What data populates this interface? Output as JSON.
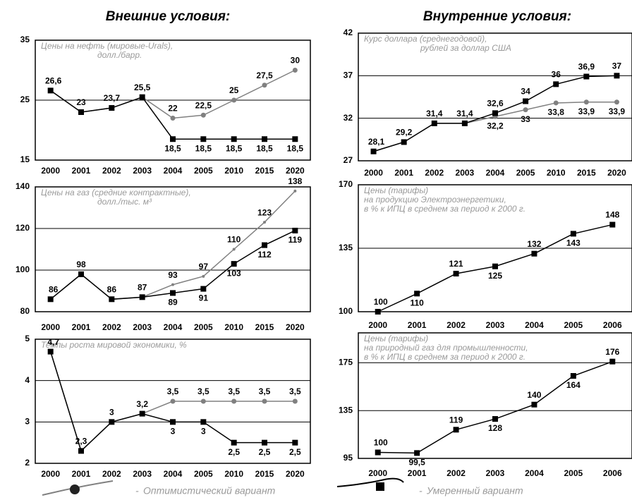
{
  "headers": [
    "Внешние условия:",
    "Внутренние условия:"
  ],
  "chart_data": [
    {
      "type": "line",
      "title": [
        "Цены на нефть (мировые-Urals),",
        "долл./барр."
      ],
      "categories": [
        "2000",
        "2001",
        "2002",
        "2003",
        "2004",
        "2005",
        "2010",
        "2015",
        "2020"
      ],
      "ylim": [
        15,
        35
      ],
      "yticks": [
        15,
        25,
        35
      ],
      "grid": true,
      "series": [
        {
          "name": "Оптимистический вариант",
          "color": "#808080",
          "marker": "circle",
          "values": [
            26.6,
            23,
            23.7,
            25.5,
            22,
            22.5,
            25,
            27.5,
            30
          ],
          "value_labels": [
            "26,6",
            "23",
            "23,7",
            "25,5",
            "22",
            "22,5",
            "25",
            "27,5",
            "30"
          ]
        },
        {
          "name": "Умеренный вариант",
          "color": "#000000",
          "marker": "square",
          "values": [
            26.6,
            23,
            23.7,
            25.5,
            18.5,
            18.5,
            18.5,
            18.5,
            18.5
          ],
          "value_labels": [
            null,
            null,
            null,
            null,
            "18,5",
            "18,5",
            "18,5",
            "18,5",
            "18,5"
          ]
        }
      ]
    },
    {
      "type": "line",
      "title": [
        "Цены на газ (средние контрактные),",
        "долл./тыс. м³"
      ],
      "categories": [
        "2000",
        "2001",
        "2002",
        "2003",
        "2004",
        "2005",
        "2010",
        "2015",
        "2020"
      ],
      "ylim": [
        80,
        140
      ],
      "yticks": [
        80,
        100,
        120,
        140
      ],
      "grid": true,
      "series": [
        {
          "color": "#808080",
          "marker": "small",
          "values": [
            86,
            98,
            86,
            87,
            93,
            97,
            110,
            123,
            138
          ],
          "value_labels": [
            "86",
            "98",
            "86",
            "87",
            "93",
            "97",
            "110",
            "123",
            "138"
          ]
        },
        {
          "color": "#000000",
          "marker": "square",
          "values": [
            86,
            98,
            86,
            87,
            89,
            91,
            103,
            112,
            119
          ],
          "value_labels": [
            null,
            null,
            null,
            null,
            "89",
            "91",
            "103",
            "112",
            "119"
          ]
        }
      ]
    },
    {
      "type": "line",
      "title": [
        "Темпы роста мировой экономики, %"
      ],
      "categories": [
        "2000",
        "2001",
        "2002",
        "2003",
        "2004",
        "2005",
        "2010",
        "2015",
        "2020"
      ],
      "ylim": [
        2,
        5
      ],
      "yticks": [
        2,
        3,
        4,
        5
      ],
      "grid": true,
      "series": [
        {
          "color": "#808080",
          "marker": "circle",
          "values": [
            4.7,
            2.3,
            3,
            3.2,
            3.5,
            3.5,
            3.5,
            3.5,
            3.5
          ],
          "value_labels": [
            "4,7",
            "2,3",
            "3",
            "3,2",
            "3,5",
            "3,5",
            "3,5",
            "3,5",
            "3,5"
          ]
        },
        {
          "color": "#000000",
          "marker": "square",
          "values": [
            4.7,
            2.3,
            3,
            3.2,
            3,
            3,
            2.5,
            2.5,
            2.5
          ],
          "value_labels": [
            null,
            null,
            null,
            null,
            "3",
            "3",
            "2,5",
            "2,5",
            "2,5"
          ]
        }
      ]
    },
    {
      "type": "line",
      "title": [
        "Курс доллара (среднегодовой),",
        "рублей за доллар США"
      ],
      "categories": [
        "2000",
        "2001",
        "2002",
        "2003",
        "2004",
        "2005",
        "2010",
        "2015",
        "2020"
      ],
      "ylim": [
        27,
        42
      ],
      "yticks": [
        27,
        32,
        37,
        42
      ],
      "grid": true,
      "series": [
        {
          "color": "#808080",
          "marker": "circle",
          "values": [
            28.1,
            29.2,
            31.4,
            31.4,
            32.2,
            33,
            33.8,
            33.9,
            33.9
          ],
          "value_labels": [
            null,
            null,
            null,
            null,
            "32,2",
            "33",
            "33,8",
            "33,9",
            "33,9"
          ]
        },
        {
          "color": "#000000",
          "marker": "square",
          "values": [
            28.1,
            29.2,
            31.4,
            31.4,
            32.6,
            34,
            36,
            36.9,
            37
          ],
          "value_labels": [
            "28,1",
            "29,2",
            "31,4",
            "31,4",
            "32,6",
            "34",
            "36",
            "36,9",
            "37"
          ]
        }
      ]
    },
    {
      "type": "line",
      "title": [
        "Цены (тарифы)",
        "на продукцию Электроэнергетики,",
        "в % к ИПЦ в среднем за период к 2000 г."
      ],
      "categories": [
        "2000",
        "2001",
        "2002",
        "2003",
        "2004",
        "2005",
        "2006"
      ],
      "ylim": [
        100,
        170
      ],
      "yticks": [
        100,
        135,
        170
      ],
      "grid": true,
      "series": [
        {
          "color": "#000000",
          "marker": "square",
          "values": [
            100,
            110,
            121,
            125,
            132,
            143,
            148
          ],
          "value_labels": [
            "100",
            "110",
            "121",
            "125",
            "132",
            "143",
            "148"
          ]
        }
      ]
    },
    {
      "type": "line",
      "title": [
        "Цены (тарифы)",
        "на природный газ для промышленности,",
        "в % к ИПЦ в среднем за период к 2000 г."
      ],
      "categories": [
        "2000",
        "2001",
        "2002",
        "2003",
        "2004",
        "2005",
        "2006"
      ],
      "ylim": [
        95,
        200
      ],
      "yticks": [
        95,
        135,
        175
      ],
      "grid": true,
      "series": [
        {
          "color": "#000000",
          "marker": "square",
          "values": [
            100,
            99.5,
            119,
            128,
            140,
            164,
            176
          ],
          "value_labels": [
            "100",
            "99,5",
            "119",
            "128",
            "140",
            "164",
            "176"
          ]
        }
      ]
    }
  ]
}
